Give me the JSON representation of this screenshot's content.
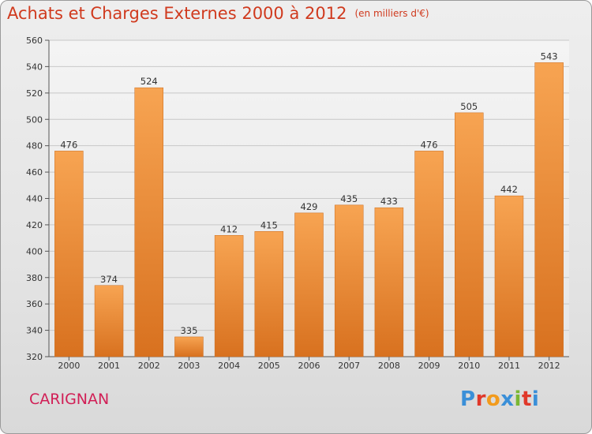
{
  "title": "Achats et Charges Externes 2000 à 2012",
  "subtitle": "(en milliers d'€)",
  "commune": "CARIGNAN",
  "logo": {
    "letters": [
      "P",
      "r",
      "o",
      "x",
      "i",
      "t",
      "i"
    ],
    "colors": [
      "#3a8fd8",
      "#e0382a",
      "#f29b1d",
      "#3a8fd8",
      "#7ab733",
      "#e0382a",
      "#3a8fd8"
    ]
  },
  "colors": {
    "bar_top": "#f7a452",
    "bar_bottom": "#d8711f",
    "title": "#d03a1e",
    "commune": "#d11f56"
  },
  "chart_data": {
    "type": "bar",
    "categories": [
      "2000",
      "2001",
      "2002",
      "2003",
      "2004",
      "2005",
      "2006",
      "2007",
      "2008",
      "2009",
      "2010",
      "2011",
      "2012"
    ],
    "values": [
      476,
      374,
      524,
      335,
      412,
      415,
      429,
      435,
      433,
      476,
      505,
      442,
      543
    ],
    "ylim": [
      320,
      560
    ],
    "yticks": [
      320,
      340,
      360,
      380,
      400,
      420,
      440,
      460,
      480,
      500,
      520,
      540,
      560
    ],
    "grid": true
  }
}
